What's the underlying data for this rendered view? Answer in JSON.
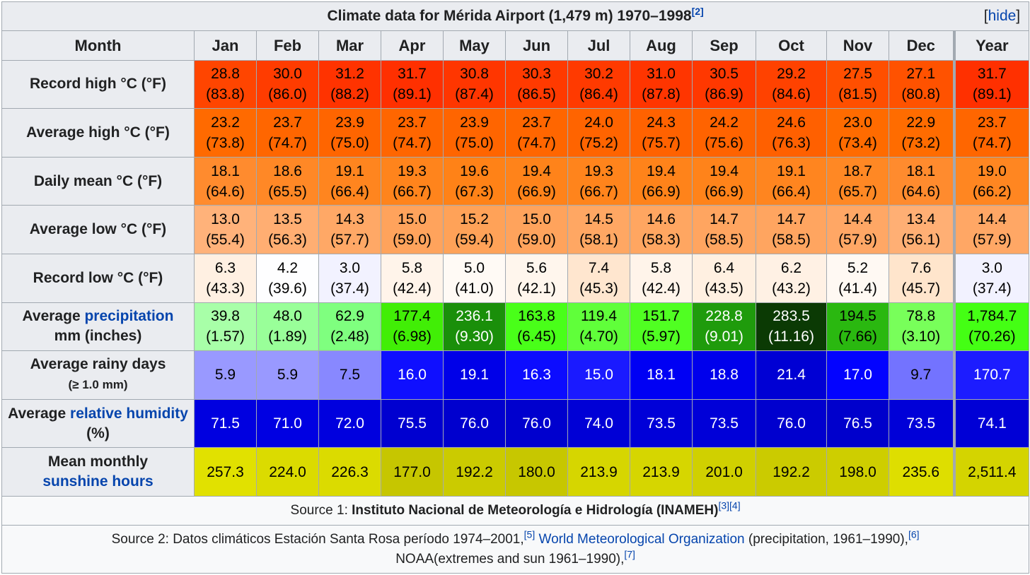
{
  "caption": {
    "title": "Climate data for Mérida Airport (1,479 m) 1970–1998",
    "ref": "[2]",
    "hide_open": "[",
    "hide_label": "hide",
    "hide_close": "]"
  },
  "months": [
    "Month",
    "Jan",
    "Feb",
    "Mar",
    "Apr",
    "May",
    "Jun",
    "Jul",
    "Aug",
    "Sep",
    "Oct",
    "Nov",
    "Dec",
    "Year"
  ],
  "rows": {
    "record_high": {
      "label": "Record high °C (°F)",
      "cells": [
        {
          "c": "28.8",
          "f": "(83.8)",
          "bg": "#ff4500",
          "fg": "#000000"
        },
        {
          "c": "30.0",
          "f": "(86.0)",
          "bg": "#ff3c00",
          "fg": "#000000"
        },
        {
          "c": "31.2",
          "f": "(88.2)",
          "bg": "#ff3300",
          "fg": "#000000"
        },
        {
          "c": "31.7",
          "f": "(89.1)",
          "bg": "#ff3000",
          "fg": "#000000"
        },
        {
          "c": "30.8",
          "f": "(87.4)",
          "bg": "#ff3600",
          "fg": "#000000"
        },
        {
          "c": "30.3",
          "f": "(86.5)",
          "bg": "#ff3a00",
          "fg": "#000000"
        },
        {
          "c": "30.2",
          "f": "(86.4)",
          "bg": "#ff3a00",
          "fg": "#000000"
        },
        {
          "c": "31.0",
          "f": "(87.8)",
          "bg": "#ff3500",
          "fg": "#000000"
        },
        {
          "c": "30.5",
          "f": "(86.9)",
          "bg": "#ff3800",
          "fg": "#000000"
        },
        {
          "c": "29.2",
          "f": "(84.6)",
          "bg": "#ff4200",
          "fg": "#000000"
        },
        {
          "c": "27.5",
          "f": "(81.5)",
          "bg": "#ff4f00",
          "fg": "#000000"
        },
        {
          "c": "27.1",
          "f": "(80.8)",
          "bg": "#ff5200",
          "fg": "#000000"
        },
        {
          "c": "31.7",
          "f": "(89.1)",
          "bg": "#ff3000",
          "fg": "#000000"
        }
      ]
    },
    "avg_high": {
      "label": "Average high °C (°F)",
      "cells": [
        {
          "c": "23.2",
          "f": "(73.8)",
          "bg": "#ff6a00",
          "fg": "#000000"
        },
        {
          "c": "23.7",
          "f": "(74.7)",
          "bg": "#ff6600",
          "fg": "#000000"
        },
        {
          "c": "23.9",
          "f": "(75.0)",
          "bg": "#ff6500",
          "fg": "#000000"
        },
        {
          "c": "23.7",
          "f": "(74.7)",
          "bg": "#ff6600",
          "fg": "#000000"
        },
        {
          "c": "23.9",
          "f": "(75.0)",
          "bg": "#ff6500",
          "fg": "#000000"
        },
        {
          "c": "23.7",
          "f": "(74.7)",
          "bg": "#ff6600",
          "fg": "#000000"
        },
        {
          "c": "24.0",
          "f": "(75.2)",
          "bg": "#ff6400",
          "fg": "#000000"
        },
        {
          "c": "24.3",
          "f": "(75.7)",
          "bg": "#ff6200",
          "fg": "#000000"
        },
        {
          "c": "24.2",
          "f": "(75.6)",
          "bg": "#ff6300",
          "fg": "#000000"
        },
        {
          "c": "24.6",
          "f": "(76.3)",
          "bg": "#ff6000",
          "fg": "#000000"
        },
        {
          "c": "23.0",
          "f": "(73.4)",
          "bg": "#ff6b00",
          "fg": "#000000"
        },
        {
          "c": "22.9",
          "f": "(73.2)",
          "bg": "#ff6c00",
          "fg": "#000000"
        },
        {
          "c": "23.7",
          "f": "(74.7)",
          "bg": "#ff6600",
          "fg": "#000000"
        }
      ]
    },
    "daily_mean": {
      "label": "Daily mean °C (°F)",
      "cells": [
        {
          "c": "18.1",
          "f": "(64.6)",
          "bg": "#ff8b2e",
          "fg": "#000000"
        },
        {
          "c": "18.6",
          "f": "(65.5)",
          "bg": "#ff8826",
          "fg": "#000000"
        },
        {
          "c": "19.1",
          "f": "(66.4)",
          "bg": "#ff851f",
          "fg": "#000000"
        },
        {
          "c": "19.3",
          "f": "(66.7)",
          "bg": "#ff841c",
          "fg": "#000000"
        },
        {
          "c": "19.6",
          "f": "(67.3)",
          "bg": "#ff8217",
          "fg": "#000000"
        },
        {
          "c": "19.4",
          "f": "(66.9)",
          "bg": "#ff831a",
          "fg": "#000000"
        },
        {
          "c": "19.3",
          "f": "(66.7)",
          "bg": "#ff841c",
          "fg": "#000000"
        },
        {
          "c": "19.4",
          "f": "(66.9)",
          "bg": "#ff831a",
          "fg": "#000000"
        },
        {
          "c": "19.4",
          "f": "(66.9)",
          "bg": "#ff831a",
          "fg": "#000000"
        },
        {
          "c": "19.1",
          "f": "(66.4)",
          "bg": "#ff851f",
          "fg": "#000000"
        },
        {
          "c": "18.7",
          "f": "(65.7)",
          "bg": "#ff8824",
          "fg": "#000000"
        },
        {
          "c": "18.1",
          "f": "(64.6)",
          "bg": "#ff8b2e",
          "fg": "#000000"
        },
        {
          "c": "19.0",
          "f": "(66.2)",
          "bg": "#ff8621",
          "fg": "#000000"
        }
      ]
    },
    "avg_low": {
      "label": "Average low °C (°F)",
      "cells": [
        {
          "c": "13.0",
          "f": "(55.4)",
          "bg": "#ffb27a",
          "fg": "#000000"
        },
        {
          "c": "13.5",
          "f": "(56.3)",
          "bg": "#ffae72",
          "fg": "#000000"
        },
        {
          "c": "14.3",
          "f": "(57.7)",
          "bg": "#ffa866",
          "fg": "#000000"
        },
        {
          "c": "15.0",
          "f": "(59.0)",
          "bg": "#ffa35c",
          "fg": "#000000"
        },
        {
          "c": "15.2",
          "f": "(59.4)",
          "bg": "#ffa258",
          "fg": "#000000"
        },
        {
          "c": "15.0",
          "f": "(59.0)",
          "bg": "#ffa35c",
          "fg": "#000000"
        },
        {
          "c": "14.5",
          "f": "(58.1)",
          "bg": "#ffa763",
          "fg": "#000000"
        },
        {
          "c": "14.6",
          "f": "(58.3)",
          "bg": "#ffa661",
          "fg": "#000000"
        },
        {
          "c": "14.7",
          "f": "(58.5)",
          "bg": "#ffa560",
          "fg": "#000000"
        },
        {
          "c": "14.7",
          "f": "(58.5)",
          "bg": "#ffa560",
          "fg": "#000000"
        },
        {
          "c": "14.4",
          "f": "(57.9)",
          "bg": "#ffa765",
          "fg": "#000000"
        },
        {
          "c": "13.4",
          "f": "(56.1)",
          "bg": "#ffaf74",
          "fg": "#000000"
        },
        {
          "c": "14.4",
          "f": "(57.9)",
          "bg": "#ffa765",
          "fg": "#000000"
        }
      ]
    },
    "record_low": {
      "label": "Record low °C (°F)",
      "cells": [
        {
          "c": "6.3",
          "f": "(43.3)",
          "bg": "#fff0e2",
          "fg": "#000000"
        },
        {
          "c": "4.2",
          "f": "(39.6)",
          "bg": "#fefeff",
          "fg": "#000000"
        },
        {
          "c": "3.0",
          "f": "(37.4)",
          "bg": "#f2f2ff",
          "fg": "#000000"
        },
        {
          "c": "5.8",
          "f": "(42.4)",
          "bg": "#fff4ea",
          "fg": "#000000"
        },
        {
          "c": "5.0",
          "f": "(41.0)",
          "bg": "#fffaf5",
          "fg": "#000000"
        },
        {
          "c": "5.6",
          "f": "(42.1)",
          "bg": "#fff6ed",
          "fg": "#000000"
        },
        {
          "c": "7.4",
          "f": "(45.3)",
          "bg": "#ffe6cf",
          "fg": "#000000"
        },
        {
          "c": "5.8",
          "f": "(42.4)",
          "bg": "#fff4ea",
          "fg": "#000000"
        },
        {
          "c": "6.4",
          "f": "(43.5)",
          "bg": "#fff0e1",
          "fg": "#000000"
        },
        {
          "c": "6.2",
          "f": "(43.2)",
          "bg": "#fff1e4",
          "fg": "#000000"
        },
        {
          "c": "5.2",
          "f": "(41.4)",
          "bg": "#fff9f3",
          "fg": "#000000"
        },
        {
          "c": "7.6",
          "f": "(45.7)",
          "bg": "#ffe5cc",
          "fg": "#000000"
        },
        {
          "c": "3.0",
          "f": "(37.4)",
          "bg": "#f2f2ff",
          "fg": "#000000"
        }
      ]
    },
    "precip": {
      "label_pre": "Average ",
      "label_link": "precipitation",
      "label_post": "mm (inches)",
      "cells": [
        {
          "c": "39.8",
          "f": "(1.57)",
          "bg": "#a8ffa8",
          "fg": "#000000"
        },
        {
          "c": "48.0",
          "f": "(1.89)",
          "bg": "#99ff99",
          "fg": "#000000"
        },
        {
          "c": "62.9",
          "f": "(2.48)",
          "bg": "#7fff7f",
          "fg": "#000000"
        },
        {
          "c": "177.4",
          "f": "(6.98)",
          "bg": "#41ee06",
          "fg": "#000000"
        },
        {
          "c": "236.1",
          "f": "(9.30)",
          "bg": "#1a8f0a",
          "fg": "#ffffff"
        },
        {
          "c": "163.8",
          "f": "(6.45)",
          "bg": "#49ff19",
          "fg": "#000000"
        },
        {
          "c": "119.4",
          "f": "(4.70)",
          "bg": "#60ff3a",
          "fg": "#000000"
        },
        {
          "c": "151.7",
          "f": "(5.97)",
          "bg": "#50ff22",
          "fg": "#000000"
        },
        {
          "c": "228.8",
          "f": "(9.01)",
          "bg": "#1f9b0c",
          "fg": "#ffffff"
        },
        {
          "c": "283.5",
          "f": "(11.16)",
          "bg": "#0b3a04",
          "fg": "#ffffff"
        },
        {
          "c": "194.5",
          "f": "(7.66)",
          "bg": "#2ab810",
          "fg": "#000000"
        },
        {
          "c": "78.8",
          "f": "(3.10)",
          "bg": "#78ff5a",
          "fg": "#000000"
        },
        {
          "c": "1,784.7",
          "f": "(70.26)",
          "bg": "#44ff14",
          "fg": "#000000"
        }
      ]
    },
    "rainy_days": {
      "label": "Average rainy days",
      "label_small": "(≥ 1.0 mm)",
      "cells": [
        {
          "v": "5.9",
          "bg": "#9999ff",
          "fg": "#000000"
        },
        {
          "v": "5.9",
          "bg": "#9999ff",
          "fg": "#000000"
        },
        {
          "v": "7.5",
          "bg": "#8888ff",
          "fg": "#000000"
        },
        {
          "v": "16.0",
          "bg": "#0f0fff",
          "fg": "#ffffff"
        },
        {
          "v": "19.1",
          "bg": "#0000e8",
          "fg": "#ffffff"
        },
        {
          "v": "16.3",
          "bg": "#0c0cff",
          "fg": "#ffffff"
        },
        {
          "v": "15.0",
          "bg": "#1a1aff",
          "fg": "#ffffff"
        },
        {
          "v": "18.1",
          "bg": "#0000f4",
          "fg": "#ffffff"
        },
        {
          "v": "18.8",
          "bg": "#0000ec",
          "fg": "#ffffff"
        },
        {
          "v": "21.4",
          "bg": "#0000d4",
          "fg": "#ffffff"
        },
        {
          "v": "17.0",
          "bg": "#0303ff",
          "fg": "#ffffff"
        },
        {
          "v": "9.7",
          "bg": "#7373ff",
          "fg": "#000000"
        },
        {
          "v": "170.7",
          "bg": "#1c1cff",
          "fg": "#ffffff"
        }
      ]
    },
    "humidity": {
      "label_pre": "Average ",
      "label_link": "relative humidity",
      "label_post": " (%)",
      "cells": [
        {
          "v": "71.5",
          "bg": "#0000e0",
          "fg": "#ffffff"
        },
        {
          "v": "71.0",
          "bg": "#0000e2",
          "fg": "#ffffff"
        },
        {
          "v": "72.0",
          "bg": "#0000de",
          "fg": "#ffffff"
        },
        {
          "v": "75.5",
          "bg": "#0000d0",
          "fg": "#ffffff"
        },
        {
          "v": "76.0",
          "bg": "#0000ce",
          "fg": "#ffffff"
        },
        {
          "v": "76.0",
          "bg": "#0000ce",
          "fg": "#ffffff"
        },
        {
          "v": "74.0",
          "bg": "#0000d6",
          "fg": "#ffffff"
        },
        {
          "v": "73.5",
          "bg": "#0000d8",
          "fg": "#ffffff"
        },
        {
          "v": "73.5",
          "bg": "#0000d8",
          "fg": "#ffffff"
        },
        {
          "v": "76.0",
          "bg": "#0000ce",
          "fg": "#ffffff"
        },
        {
          "v": "76.5",
          "bg": "#0000cc",
          "fg": "#ffffff"
        },
        {
          "v": "73.5",
          "bg": "#0000d8",
          "fg": "#ffffff"
        },
        {
          "v": "74.1",
          "bg": "#0000d6",
          "fg": "#ffffff"
        }
      ]
    },
    "sunshine": {
      "label_pre": "Mean monthly",
      "label_link": "sunshine hours",
      "cells": [
        {
          "v": "257.3",
          "bg": "#e1e100",
          "fg": "#000000"
        },
        {
          "v": "224.0",
          "bg": "#dbdb00",
          "fg": "#000000"
        },
        {
          "v": "226.3",
          "bg": "#dbdb00",
          "fg": "#000000"
        },
        {
          "v": "177.0",
          "bg": "#c6c600",
          "fg": "#000000"
        },
        {
          "v": "192.2",
          "bg": "#cbcb00",
          "fg": "#000000"
        },
        {
          "v": "180.0",
          "bg": "#c7c700",
          "fg": "#000000"
        },
        {
          "v": "213.9",
          "bg": "#d6d600",
          "fg": "#000000"
        },
        {
          "v": "213.9",
          "bg": "#d6d600",
          "fg": "#000000"
        },
        {
          "v": "201.0",
          "bg": "#d0d000",
          "fg": "#000000"
        },
        {
          "v": "192.2",
          "bg": "#cbcb00",
          "fg": "#000000"
        },
        {
          "v": "198.0",
          "bg": "#cece00",
          "fg": "#000000"
        },
        {
          "v": "235.6",
          "bg": "#dede00",
          "fg": "#000000"
        },
        {
          "v": "2,511.4",
          "bg": "#d4d400",
          "fg": "#000000"
        }
      ]
    }
  },
  "source1": {
    "prefix": "Source 1: ",
    "name": "Instituto Nacional de Meteorología e Hidrología (INAMEH)",
    "refs": "[3][4]"
  },
  "source2": {
    "part1": "Source 2: Datos climáticos Estación Santa Rosa período 1974–2001,",
    "ref5": "[5]",
    "link": "World Meteorological Organization",
    "part2": " (precipitation, 1961–1990),",
    "ref6": "[6]",
    "part3": "NOAA(extremes and sun 1961–1990),",
    "ref7": "[7]"
  }
}
